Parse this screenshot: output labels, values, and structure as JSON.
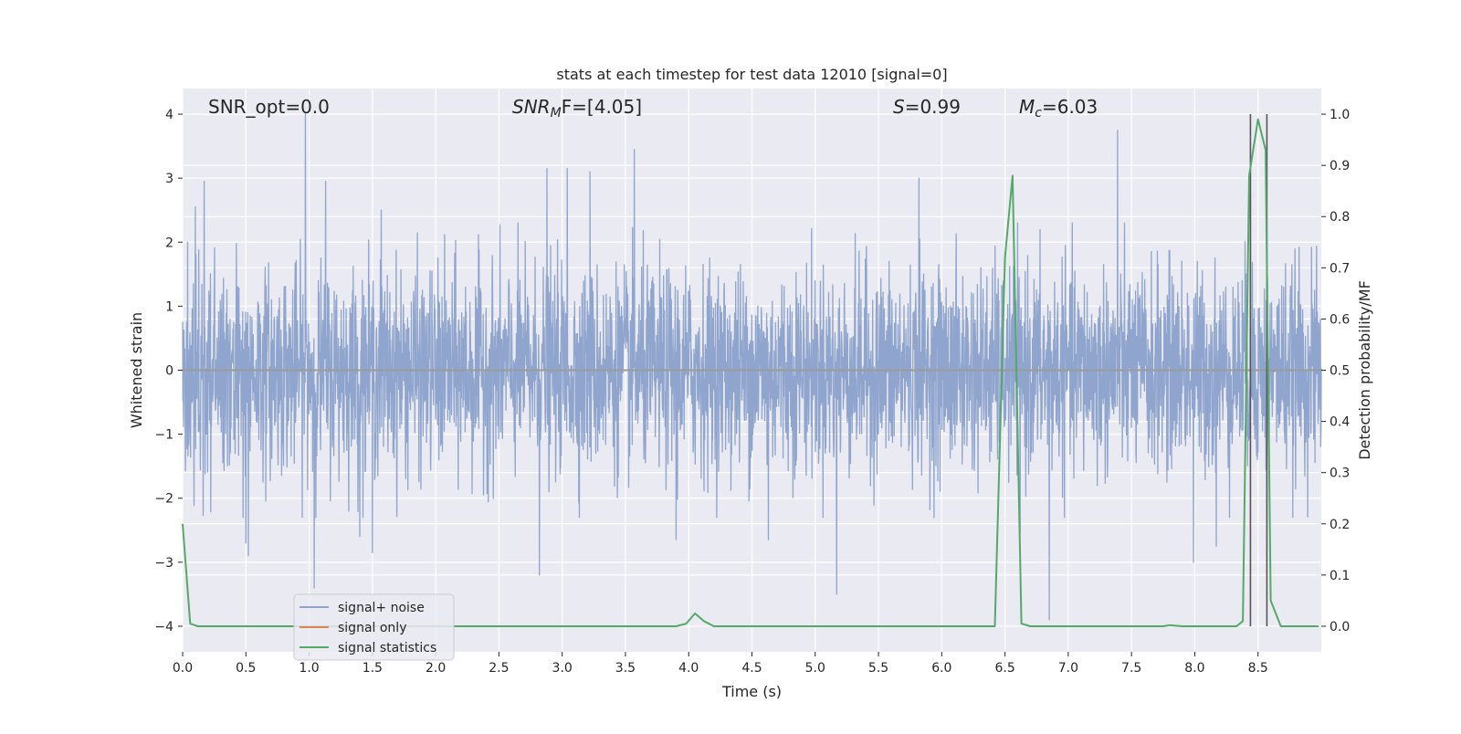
{
  "chart_data": {
    "type": "line",
    "title": "stats at each timestep for test data 12010 [signal=0]",
    "xlabel": "Time (s)",
    "ylabel": "Whitened strain",
    "y2label": "Detection probability/MF",
    "xlim": [
      0,
      9.0
    ],
    "ylim": [
      -4.4,
      4.4
    ],
    "y2lim": [
      -0.05,
      1.05
    ],
    "x_ticks": [
      "0.0",
      "0.5",
      "1.0",
      "1.5",
      "2.0",
      "2.5",
      "3.0",
      "3.5",
      "4.0",
      "4.5",
      "5.0",
      "5.5",
      "6.0",
      "6.5",
      "7.0",
      "7.5",
      "8.0",
      "8.5"
    ],
    "y_ticks": [
      "4",
      "3",
      "2",
      "1",
      "0",
      "−1",
      "−2",
      "−3",
      "−4"
    ],
    "y2_ticks": [
      "1.0",
      "0.9",
      "0.8",
      "0.7",
      "0.6",
      "0.5",
      "0.4",
      "0.3",
      "0.2",
      "0.1",
      "0.0"
    ],
    "grid": true,
    "legend_placement": "lower-left",
    "annotations": {
      "snr_opt": "SNR_opt=0.0",
      "snr_mf_base": "SNR",
      "snr_mf_sub": "M",
      "snr_mf_rest": "F=[4.05]",
      "s_italic": "S",
      "s_rest": "=0.99",
      "mc_base": "M",
      "mc_sub": "c",
      "mc_rest": "=6.03"
    },
    "series": [
      {
        "name": "signal+ noise",
        "color": "#8fa5cd",
        "typical_envelope": 1.5,
        "notable_peaks": [
          {
            "x": 0.04,
            "y": 2.0
          },
          {
            "x": 0.1,
            "y": 2.55
          },
          {
            "x": 0.17,
            "y": 2.95
          },
          {
            "x": 0.5,
            "y": -2.7
          },
          {
            "x": 0.52,
            "y": -2.9
          },
          {
            "x": 0.97,
            "y": 4.0
          },
          {
            "x": 1.04,
            "y": -3.4
          },
          {
            "x": 1.13,
            "y": 2.95
          },
          {
            "x": 1.4,
            "y": -2.6
          },
          {
            "x": 1.5,
            "y": -2.85
          },
          {
            "x": 1.57,
            "y": 2.5
          },
          {
            "x": 2.82,
            "y": -3.2
          },
          {
            "x": 2.88,
            "y": 3.15
          },
          {
            "x": 3.04,
            "y": 3.15
          },
          {
            "x": 3.22,
            "y": 3.1
          },
          {
            "x": 3.57,
            "y": 3.45
          },
          {
            "x": 3.9,
            "y": -2.65
          },
          {
            "x": 4.63,
            "y": -2.65
          },
          {
            "x": 5.17,
            "y": -3.5
          },
          {
            "x": 5.82,
            "y": 3.0
          },
          {
            "x": 6.62,
            "y": -2.55
          },
          {
            "x": 6.85,
            "y": -3.9
          },
          {
            "x": 7.39,
            "y": 3.75
          },
          {
            "x": 7.99,
            "y": -3.0
          },
          {
            "x": 8.17,
            "y": -2.75
          },
          {
            "x": 8.44,
            "y": 2.75
          },
          {
            "x": 8.57,
            "y": -2.45
          }
        ]
      },
      {
        "name": "signal only",
        "color": "#dd8452",
        "values_y": 0.0
      },
      {
        "name": "signal statistics",
        "color": "#55a868",
        "axis": "right",
        "points": [
          [
            0.0,
            0.2
          ],
          [
            0.06,
            0.005
          ],
          [
            0.12,
            0.0
          ],
          [
            3.9,
            0.0
          ],
          [
            3.98,
            0.005
          ],
          [
            4.05,
            0.025
          ],
          [
            4.12,
            0.01
          ],
          [
            4.2,
            0.0
          ],
          [
            6.42,
            0.0
          ],
          [
            6.5,
            0.72
          ],
          [
            6.56,
            0.88
          ],
          [
            6.63,
            0.005
          ],
          [
            6.7,
            0.0
          ],
          [
            7.75,
            0.0
          ],
          [
            7.8,
            0.002
          ],
          [
            7.9,
            0.0
          ],
          [
            8.33,
            0.0
          ],
          [
            8.38,
            0.01
          ],
          [
            8.43,
            0.88
          ],
          [
            8.5,
            0.99
          ],
          [
            8.56,
            0.93
          ],
          [
            8.6,
            0.05
          ],
          [
            8.68,
            0.0
          ],
          [
            8.98,
            0.0
          ]
        ]
      }
    ],
    "vertical_markers_x": [
      8.44,
      8.57
    ]
  },
  "colors": {
    "plot_background": "#eaeaf2",
    "grid": "#ffffff",
    "marker_line": "#555555",
    "zero_line": "#9a9a9a"
  }
}
